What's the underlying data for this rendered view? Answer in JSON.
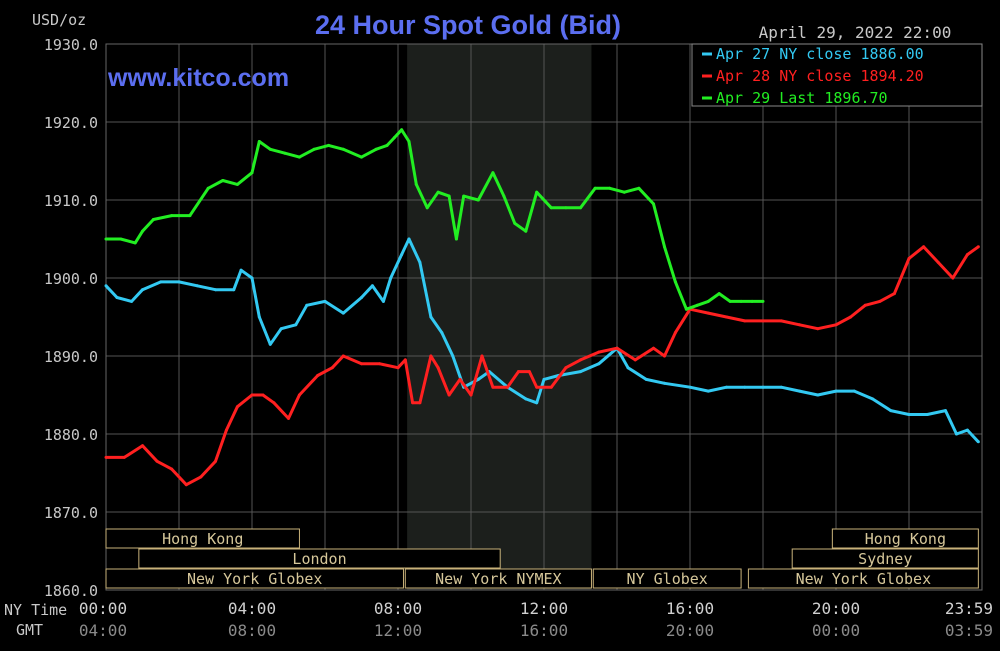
{
  "chart_data": {
    "type": "line",
    "title": "24 Hour Spot Gold (Bid)",
    "unit_label": "USD/oz",
    "timestamp": "April 29, 2022 22:00",
    "watermark": "www.kitco.com",
    "ylim": [
      1860,
      1930
    ],
    "y_ticks": [
      "1930.0",
      "1920.0",
      "1910.0",
      "1900.0",
      "1890.0",
      "1880.0",
      "1870.0",
      "1860.0"
    ],
    "y_tick_values": [
      1930,
      1920,
      1910,
      1900,
      1890,
      1880,
      1870,
      1860
    ],
    "xlim": [
      0,
      24
    ],
    "x_row1_label": "NY Time",
    "x_row2_label": "GMT",
    "x_ticks_ny": [
      "00:00",
      "04:00",
      "08:00",
      "12:00",
      "16:00",
      "20:00",
      "23:59"
    ],
    "x_ticks_gmt": [
      "04:00",
      "08:00",
      "12:00",
      "16:00",
      "20:00",
      "00:00",
      "03:59"
    ],
    "x_tick_hours": [
      0,
      4,
      8,
      12,
      16,
      20,
      24
    ],
    "grid": true,
    "legend_position": "top-right",
    "session_shading": [
      {
        "start": 8.25,
        "end": 13.3
      }
    ],
    "sessions": [
      {
        "label": "Hong Kong",
        "start": 0,
        "end": 5.3,
        "row": 0
      },
      {
        "label": "Hong Kong",
        "start": 19.9,
        "end": 23.9,
        "row": 0
      },
      {
        "label": "London",
        "start": 0.9,
        "end": 10.8,
        "row": 1
      },
      {
        "label": "Sydney",
        "start": 18.8,
        "end": 23.9,
        "row": 1
      },
      {
        "label": "New York Globex",
        "start": 0,
        "end": 8.15,
        "row": 2
      },
      {
        "label": "New York NYMEX",
        "start": 8.2,
        "end": 13.3,
        "row": 2
      },
      {
        "label": "NY Globex",
        "start": 13.35,
        "end": 17.4,
        "row": 2
      },
      {
        "label": "New York Globex",
        "start": 17.6,
        "end": 23.9,
        "row": 2
      }
    ],
    "series": [
      {
        "name": "Apr 27 NY close 1886.00",
        "color": "#33c9f2",
        "x": [
          0,
          0.3,
          0.7,
          1,
          1.5,
          2,
          2.5,
          3,
          3.5,
          3.7,
          4,
          4.2,
          4.5,
          4.8,
          5.2,
          5.5,
          6,
          6.5,
          7,
          7.3,
          7.6,
          7.8,
          8.1,
          8.3,
          8.6,
          8.9,
          9.2,
          9.5,
          9.8,
          10.2,
          10.5,
          11,
          11.5,
          11.8,
          12,
          12.4,
          13,
          13.5,
          14,
          14.3,
          14.8,
          15.3,
          16,
          16.5,
          17,
          17.5,
          18,
          18.5,
          19,
          19.5,
          20,
          20.5,
          21,
          21.5,
          22,
          22.5,
          23,
          23.3,
          23.6,
          23.9
        ],
        "values": [
          1899,
          1897.5,
          1897,
          1898.5,
          1899.5,
          1899.5,
          1899,
          1898.5,
          1898.5,
          1901,
          1900,
          1895,
          1891.5,
          1893.5,
          1894,
          1896.5,
          1897,
          1895.5,
          1897.5,
          1899,
          1897,
          1900,
          1903,
          1905,
          1902,
          1895,
          1893,
          1890,
          1886,
          1887,
          1888,
          1886,
          1884.5,
          1884,
          1887,
          1887.5,
          1888,
          1889,
          1891,
          1888.5,
          1887,
          1886.5,
          1886,
          1885.5,
          1886,
          1886,
          1886,
          1886,
          1885.5,
          1885,
          1885.5,
          1885.5,
          1884.5,
          1883,
          1882.5,
          1882.5,
          1883,
          1880,
          1880.5,
          1879
        ]
      },
      {
        "name": "Apr 28 NY close 1894.20",
        "color": "#ff2020",
        "x": [
          0,
          0.5,
          1,
          1.4,
          1.8,
          2.2,
          2.6,
          3,
          3.3,
          3.6,
          4,
          4.3,
          4.6,
          5,
          5.3,
          5.8,
          6.2,
          6.5,
          7,
          7.5,
          8,
          8.2,
          8.4,
          8.6,
          8.9,
          9.1,
          9.4,
          9.7,
          10,
          10.3,
          10.6,
          11,
          11.3,
          11.6,
          11.8,
          12.2,
          12.6,
          13,
          13.5,
          14,
          14.5,
          15,
          15.3,
          15.6,
          16,
          16.5,
          17,
          17.5,
          18,
          18.5,
          19,
          19.5,
          20,
          20.4,
          20.8,
          21.2,
          21.6,
          22,
          22.4,
          22.8,
          23.2,
          23.6,
          23.9
        ],
        "values": [
          1877,
          1877,
          1878.5,
          1876.5,
          1875.5,
          1873.5,
          1874.5,
          1876.5,
          1880.5,
          1883.5,
          1885,
          1885,
          1884,
          1882,
          1885,
          1887.5,
          1888.5,
          1890,
          1889,
          1889,
          1888.5,
          1889.5,
          1884,
          1884,
          1890,
          1888.5,
          1885,
          1887,
          1885,
          1890,
          1886,
          1886,
          1888,
          1888,
          1886,
          1886,
          1888.5,
          1889.5,
          1890.5,
          1891,
          1889.5,
          1891,
          1890,
          1893,
          1896,
          1895.5,
          1895,
          1894.5,
          1894.5,
          1894.5,
          1894,
          1893.5,
          1894,
          1895,
          1896.5,
          1897,
          1898,
          1902.5,
          1904,
          1902,
          1900,
          1903,
          1904
        ]
      },
      {
        "name": "Apr 29 Last 1896.70",
        "color": "#22ee22",
        "x": [
          0,
          0.4,
          0.8,
          1,
          1.3,
          1.8,
          2.3,
          2.8,
          3.2,
          3.6,
          4,
          4.2,
          4.5,
          4.9,
          5.3,
          5.7,
          6.1,
          6.5,
          7,
          7.4,
          7.7,
          7.9,
          8.1,
          8.3,
          8.5,
          8.8,
          9.1,
          9.4,
          9.6,
          9.8,
          10.2,
          10.6,
          10.9,
          11.2,
          11.5,
          11.8,
          12.2,
          12.6,
          13,
          13.4,
          13.8,
          14.2,
          14.6,
          15,
          15.3,
          15.6,
          15.9,
          16.2,
          16.5,
          16.8,
          17.1,
          17.4,
          17.7,
          18
        ],
        "values": [
          1905,
          1905,
          1904.5,
          1906,
          1907.5,
          1908,
          1908,
          1911.5,
          1912.5,
          1912,
          1913.5,
          1917.5,
          1916.5,
          1916,
          1915.5,
          1916.5,
          1917,
          1916.5,
          1915.5,
          1916.5,
          1917,
          1918,
          1919,
          1917.5,
          1912,
          1909,
          1911,
          1910.5,
          1905,
          1910.5,
          1910,
          1913.5,
          1910.5,
          1907,
          1906,
          1911,
          1909,
          1909,
          1909,
          1911.5,
          1911.5,
          1911,
          1911.5,
          1909.5,
          1904,
          1899.5,
          1896,
          1896.5,
          1897,
          1898,
          1897,
          1897,
          1897,
          1897
        ]
      }
    ]
  }
}
